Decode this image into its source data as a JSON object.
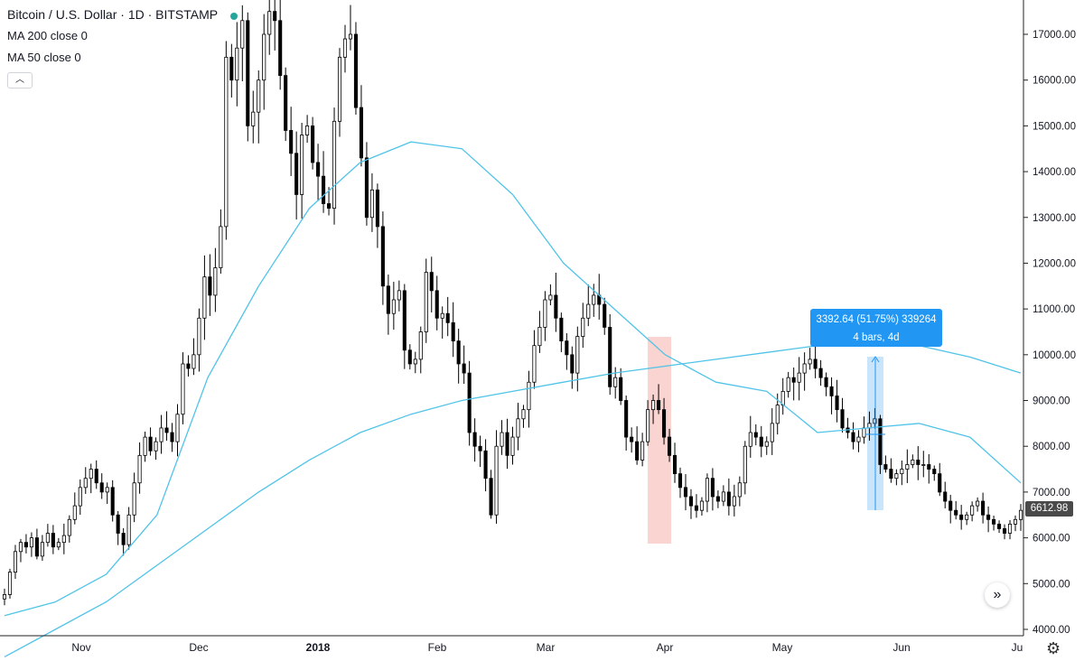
{
  "legend": {
    "title": "Bitcoin / U.S. Dollar · 1D · BITSTAMP",
    "ma200": "MA 200 close 0",
    "ma50": "MA 50 close 0",
    "collapse_icon": "chevron-up-icon"
  },
  "measure": {
    "line1": "3392.64 (51.75%) 339264",
    "line2": "4 bars, 4d"
  },
  "last_price": "6612.98",
  "colors": {
    "candle": "#000000",
    "ma": "#4fc3e8",
    "measure": "#2196f3",
    "highlight": "#f8c9c4"
  },
  "chart_data": {
    "type": "candlestick",
    "x_tick_labels": [
      "Nov",
      "Dec",
      "2018",
      "Feb",
      "Mar",
      "Apr",
      "May",
      "Jun",
      "Ju"
    ],
    "y_tick_labels": [
      "4000.00",
      "5000.00",
      "6000.00",
      "7000.00",
      "8000.00",
      "9000.00",
      "10000.00",
      "11000.00",
      "12000.00",
      "13000.00",
      "14000.00",
      "15000.00",
      "16000.00",
      "17000.00"
    ],
    "ylim": [
      3750,
      17800
    ],
    "close_series": [
      4760,
      5250,
      5700,
      5900,
      5800,
      6000,
      5600,
      5900,
      6100,
      5800,
      5900,
      6050,
      6400,
      6700,
      7100,
      7300,
      7500,
      7200,
      7000,
      7100,
      6500,
      6100,
      5850,
      6500,
      7200,
      7800,
      8200,
      7900,
      8100,
      8400,
      8300,
      8100,
      8700,
      9800,
      9700,
      10000,
      10800,
      11700,
      11300,
      11900,
      12800,
      16500,
      16000,
      16700,
      17300,
      15000,
      15300,
      16000,
      17000,
      17500,
      17300,
      16100,
      14900,
      14400,
      13500,
      14800,
      15000,
      14200,
      13900,
      13300,
      13200,
      15100,
      16500,
      16900,
      17000,
      15400,
      14300,
      13000,
      13600,
      12800,
      11500,
      10900,
      11200,
      11400,
      10100,
      9800,
      9900,
      10500,
      11800,
      11400,
      10800,
      10900,
      10700,
      10300,
      9800,
      9600,
      8300,
      8000,
      7900,
      7300,
      6500,
      8000,
      8300,
      7800,
      8200,
      8600,
      8800,
      9400,
      10200,
      10600,
      11200,
      11300,
      10800,
      10300,
      10000,
      9600,
      10400,
      10800,
      11100,
      11300,
      11100,
      10600,
      9300,
      9500,
      9000,
      8200,
      8100,
      7700,
      8100,
      8800,
      9000,
      8800,
      8200,
      7800,
      7400,
      7100,
      6900,
      6700,
      6600,
      6800,
      7300,
      6900,
      6800,
      7000,
      6700,
      6900,
      7200,
      8000,
      8300,
      8200,
      8000,
      8100,
      8500,
      8900,
      9200,
      9500,
      9400,
      9600,
      9800,
      9900,
      9700,
      9500,
      9300,
      9100,
      8800,
      8400,
      8300,
      8100,
      8200,
      8400,
      8500,
      8600,
      7600,
      7500,
      7300,
      7400,
      7500,
      7600,
      7700,
      7600,
      7600,
      7500,
      7400,
      7000,
      6800,
      6600,
      6500,
      6400,
      6500,
      6700,
      6800,
      6500,
      6400,
      6300,
      6200,
      6100,
      6300,
      6400,
      6600
    ],
    "series": [
      {
        "name": "MA 200",
        "values": [
          3400,
          4000,
          4600,
          5400,
          6200,
          7000,
          7700,
          8300,
          8700,
          9000,
          9200,
          9400,
          9600,
          9750,
          9900,
          10050,
          10200,
          10280,
          10200,
          9950,
          9600
        ]
      },
      {
        "name": "MA 50",
        "values": [
          4300,
          4600,
          5200,
          6500,
          9500,
          11500,
          13200,
          14200,
          14650,
          14500,
          13500,
          12000,
          11000,
          10000,
          9400,
          9200,
          8300,
          8400,
          8500,
          8200,
          7200
        ]
      }
    ],
    "grid": false
  }
}
